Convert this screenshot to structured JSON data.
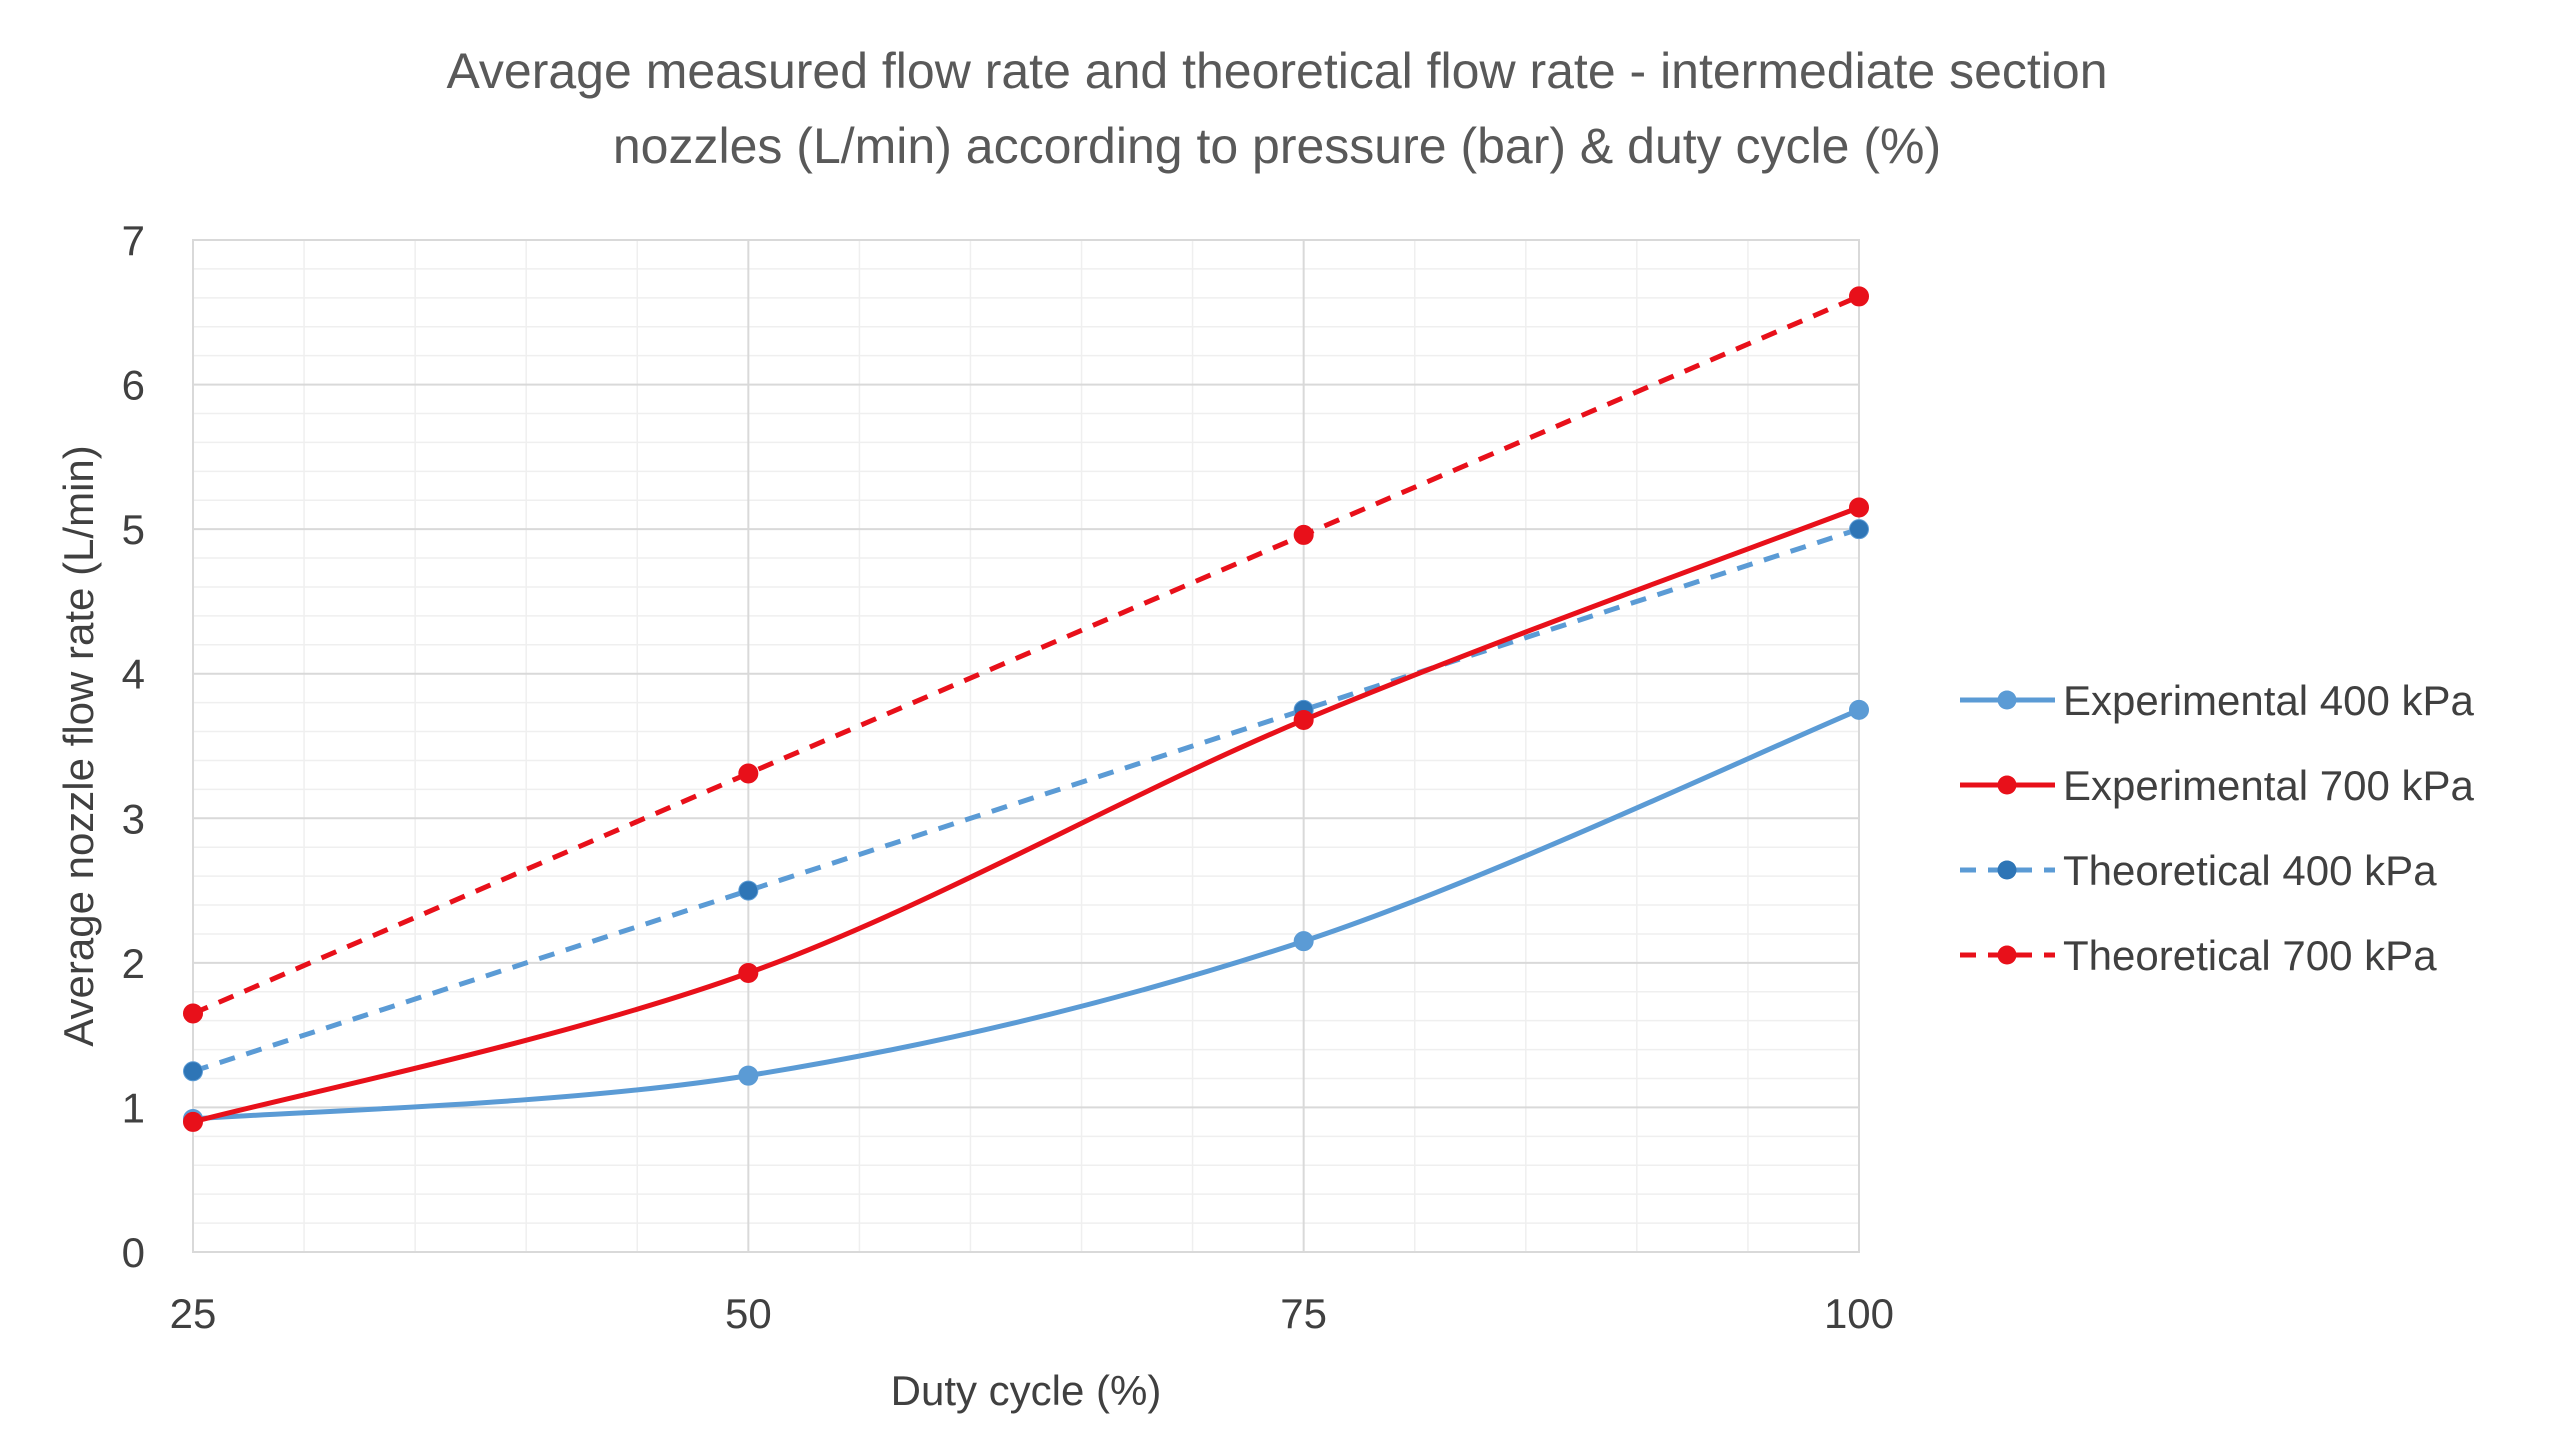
{
  "chart_data": {
    "type": "line",
    "title_lines": [
      "Average measured flow rate  and theoretical flow rate - intermediate section",
      "nozzles (L/min) according to pressure (bar) & duty cycle (%)"
    ],
    "xlabel": "Duty cycle (%)",
    "ylabel": "Average nozzle flow rate (L/min)",
    "x": [
      25,
      50,
      75,
      100
    ],
    "xlim": [
      25,
      100
    ],
    "ylim": [
      0,
      7
    ],
    "x_ticks": [
      "25",
      "50",
      "75",
      "100"
    ],
    "y_ticks": [
      "0",
      "1",
      "2",
      "3",
      "4",
      "5",
      "6",
      "7"
    ],
    "grid": true,
    "legend_position": "right",
    "series": [
      {
        "name": "Experimental 400 kPa",
        "values": [
          0.92,
          1.22,
          2.15,
          3.75
        ],
        "color": "#5B9BD5",
        "style": "solid",
        "smooth": true
      },
      {
        "name": "Experimental 700 kPa",
        "values": [
          0.9,
          1.93,
          3.68,
          5.15
        ],
        "color": "#E8101A",
        "style": "solid",
        "smooth": true
      },
      {
        "name": "Theoretical 400 kPa",
        "values": [
          1.25,
          2.5,
          3.75,
          5.0
        ],
        "color": "#5B9BD5",
        "style": "dashed",
        "smooth": false
      },
      {
        "name": "Theoretical 700 kPa",
        "values": [
          1.65,
          3.31,
          4.96,
          6.61
        ],
        "color": "#E8101A",
        "style": "dashed",
        "smooth": false
      }
    ]
  }
}
